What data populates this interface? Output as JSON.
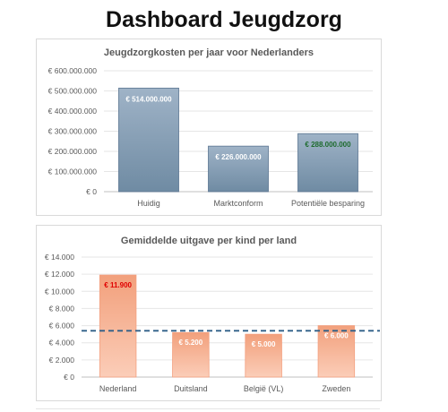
{
  "page": {
    "title": "Dashboard Jeugdzorg"
  },
  "chart_data": [
    {
      "type": "bar",
      "title": "Jeugdzorgkosten per jaar voor Nederlanders",
      "categories": [
        "Huidig",
        "Marktconform",
        "Potentiële besparing"
      ],
      "values": [
        514000000,
        226000000,
        288000000
      ],
      "data_labels": [
        "€ 514.000.000",
        "€ 226.000.000",
        "€ 288.000.000"
      ],
      "label_colors": [
        "#ffffff",
        "#ffffff",
        "#1e6b2e"
      ],
      "ylim": [
        0,
        600000000
      ],
      "yticks": [
        0,
        100000000,
        200000000,
        300000000,
        400000000,
        500000000,
        600000000
      ],
      "ytick_labels": [
        "€ 0",
        "€ 100.000.000",
        "€ 200.000.000",
        "€ 300.000.000",
        "€ 400.000.000",
        "€ 500.000.000",
        "€ 600.000.000"
      ],
      "grid": true,
      "colors": {
        "bar_top": "#9fb3c7",
        "bar_bottom": "#6f8ba3",
        "bar_stroke": "#5a7591"
      }
    },
    {
      "type": "bar",
      "title": "Gemiddelde uitgave per kind per land",
      "categories": [
        "Nederland",
        "Duitsland",
        "België (VL)",
        "Zweden"
      ],
      "values": [
        11900,
        5200,
        5000,
        6000
      ],
      "data_labels": [
        "€ 11.900",
        "€ 5.200",
        "€ 5.000",
        "€ 6.000"
      ],
      "label_colors": [
        "#e00000",
        "#ffffff",
        "#ffffff",
        "#ffffff"
      ],
      "reference_line": 5400,
      "ylim": [
        0,
        14000
      ],
      "yticks": [
        0,
        2000,
        4000,
        6000,
        8000,
        10000,
        12000,
        14000
      ],
      "ytick_labels": [
        "€ 0",
        "€ 2.000",
        "€ 4.000",
        "€ 6.000",
        "€ 8.000",
        "€ 10.000",
        "€ 12.000",
        "€ 14.000"
      ],
      "grid": true,
      "colors": {
        "bar_top": "#f2a07c",
        "bar_bottom": "#fbcdb8",
        "bar_stroke": "#f4a07f",
        "reference_line": "#2e5f88"
      }
    }
  ]
}
